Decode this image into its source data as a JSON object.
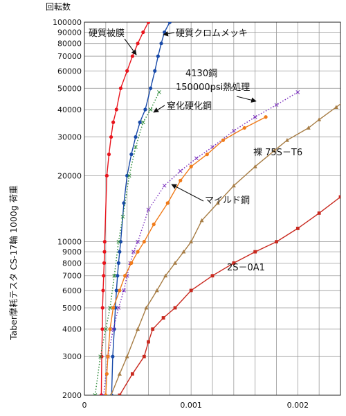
{
  "chart_data": {
    "type": "line",
    "ylabel": "Taber摩耗テスタ CS-17輪 1000g 荷重",
    "y_unit_label": "回転数",
    "y_scale": "log",
    "ylim": [
      2000,
      100000
    ],
    "xlim": [
      0,
      0.0024
    ],
    "y_ticks": [
      2000,
      3000,
      4000,
      5000,
      6000,
      7000,
      8000,
      9000,
      10000,
      20000,
      30000,
      40000,
      50000,
      60000,
      70000,
      80000,
      90000,
      100000
    ],
    "y_tick_labels": [
      "2000",
      "3000",
      "4000",
      "5000",
      "6000",
      "7000",
      "8000",
      "9000",
      "10000",
      "20000",
      "30000",
      "40000",
      "50000",
      "60000",
      "70000",
      "80000",
      "90000",
      "100000"
    ],
    "x_ticks": [
      0,
      0.001,
      0.002
    ],
    "x_tick_labels": [
      "0",
      "0.001",
      "0.002"
    ],
    "grid": true,
    "series": [
      {
        "name": "硬質被膜",
        "color": "#e8141c",
        "marker": "circle",
        "style": "solid",
        "points": [
          [
            0.000158,
            2000
          ],
          [
            0.000162,
            3000
          ],
          [
            0.000168,
            4000
          ],
          [
            0.00017,
            5000
          ],
          [
            0.000175,
            6000
          ],
          [
            0.00018,
            7000
          ],
          [
            0.000185,
            8000
          ],
          [
            0.000188,
            9000
          ],
          [
            0.00019,
            10000
          ],
          [
            0.00021,
            20000
          ],
          [
            0.00023,
            25000
          ],
          [
            0.00025,
            30000
          ],
          [
            0.00027,
            35000
          ],
          [
            0.0003,
            40000
          ],
          [
            0.00034,
            50000
          ],
          [
            0.0004,
            60000
          ],
          [
            0.00045,
            70000
          ],
          [
            0.0005,
            80000
          ],
          [
            0.00055,
            90000
          ],
          [
            0.0006,
            100000
          ]
        ]
      },
      {
        "name": "硬質クロムメッキ",
        "color": "#1749a8",
        "marker": "circle",
        "style": "solid",
        "points": [
          [
            0.000255,
            2000
          ],
          [
            0.000265,
            3000
          ],
          [
            0.00028,
            4000
          ],
          [
            0.00029,
            5000
          ],
          [
            0.0003,
            6000
          ],
          [
            0.00031,
            7000
          ],
          [
            0.00032,
            8000
          ],
          [
            0.00033,
            9000
          ],
          [
            0.00034,
            10000
          ],
          [
            0.00037,
            15000
          ],
          [
            0.0004,
            20000
          ],
          [
            0.00044,
            25000
          ],
          [
            0.00048,
            30000
          ],
          [
            0.00052,
            35000
          ],
          [
            0.00057,
            40000
          ],
          [
            0.00062,
            50000
          ],
          [
            0.00066,
            60000
          ],
          [
            0.00069,
            70000
          ],
          [
            0.00072,
            80000
          ],
          [
            0.00075,
            90000
          ],
          [
            0.0008,
            100000
          ]
        ]
      },
      {
        "name": "窒化硬化鋼",
        "color": "#2e8b3a",
        "marker": "x",
        "style": "dotted",
        "points": [
          [
            0.0001,
            2000
          ],
          [
            0.00015,
            3000
          ],
          [
            0.0002,
            4000
          ],
          [
            0.00024,
            5000
          ],
          [
            0.00028,
            7000
          ],
          [
            0.00032,
            10000
          ],
          [
            0.00036,
            13000
          ],
          [
            0.00042,
            20000
          ],
          [
            0.00048,
            27000
          ],
          [
            0.00055,
            35000
          ],
          [
            0.00062,
            40000
          ],
          [
            0.0007,
            48000
          ]
        ]
      },
      {
        "name": "4130鋼 150000psi熱処理",
        "color": "#7a2fbe",
        "marker": "x",
        "style": "dotted",
        "points": [
          [
            0.00018,
            2000
          ],
          [
            0.00022,
            3000
          ],
          [
            0.00027,
            4000
          ],
          [
            0.00032,
            5000
          ],
          [
            0.00037,
            6000
          ],
          [
            0.0004,
            7000
          ],
          [
            0.00043,
            8000
          ],
          [
            0.00046,
            9000
          ],
          [
            0.0005,
            10000
          ],
          [
            0.0006,
            14000
          ],
          [
            0.00075,
            18000
          ],
          [
            0.0009,
            21000
          ],
          [
            0.00105,
            24000
          ],
          [
            0.0012,
            27000
          ],
          [
            0.0014,
            32000
          ],
          [
            0.0016,
            37000
          ],
          [
            0.0018,
            42000
          ],
          [
            0.002,
            48000
          ]
        ]
      },
      {
        "name": "マイルド鋼",
        "color": "#f07b1a",
        "marker": "circle",
        "style": "solid",
        "points": [
          [
            0.0002,
            2000
          ],
          [
            0.00021,
            2500
          ],
          [
            0.00022,
            3000
          ],
          [
            0.00024,
            4000
          ],
          [
            0.00027,
            5000
          ],
          [
            0.00033,
            6000
          ],
          [
            0.00038,
            7000
          ],
          [
            0.00044,
            8000
          ],
          [
            0.0005,
            9000
          ],
          [
            0.00056,
            10000
          ],
          [
            0.00065,
            12000
          ],
          [
            0.00078,
            15000
          ],
          [
            0.0009,
            19000
          ],
          [
            0.001,
            22000
          ],
          [
            0.00115,
            25000
          ],
          [
            0.0013,
            29000
          ],
          [
            0.0015,
            33000
          ],
          [
            0.0017,
            37000
          ]
        ]
      },
      {
        "name": "裸 75S－T6",
        "color": "#a77d45",
        "marker": "triangle",
        "style": "solid",
        "points": [
          [
            0.00025,
            2000
          ],
          [
            0.00033,
            2500
          ],
          [
            0.0004,
            3000
          ],
          [
            0.0005,
            4000
          ],
          [
            0.00058,
            5000
          ],
          [
            0.00068,
            6000
          ],
          [
            0.00076,
            7000
          ],
          [
            0.00085,
            8000
          ],
          [
            0.00093,
            9000
          ],
          [
            0.001,
            10000
          ],
          [
            0.0011,
            12500
          ],
          [
            0.00125,
            15000
          ],
          [
            0.0014,
            18000
          ],
          [
            0.0016,
            22000
          ],
          [
            0.00178,
            26000
          ],
          [
            0.0019,
            29000
          ],
          [
            0.0021,
            33000
          ],
          [
            0.0022,
            36000
          ],
          [
            0.00236,
            41000
          ],
          [
            0.0025,
            46000
          ]
        ]
      },
      {
        "name": "2S－0A1",
        "color": "#c8281e",
        "marker": "square",
        "style": "solid",
        "points": [
          [
            0.00033,
            2000
          ],
          [
            0.00045,
            2500
          ],
          [
            0.00056,
            3000
          ],
          [
            0.0006,
            3500
          ],
          [
            0.00064,
            4000
          ],
          [
            0.00074,
            4500
          ],
          [
            0.00085,
            5000
          ],
          [
            0.001,
            6000
          ],
          [
            0.0012,
            7000
          ],
          [
            0.0014,
            8000
          ],
          [
            0.0016,
            9000
          ],
          [
            0.0018,
            10000
          ],
          [
            0.002,
            11500
          ],
          [
            0.0022,
            13500
          ],
          [
            0.0024,
            16000
          ]
        ]
      }
    ],
    "annotations": [
      {
        "text": "硬質被膜"
      },
      {
        "text": "硬質クロムメッキ"
      },
      {
        "text": "4130鋼"
      },
      {
        "text": "150000psi熱処理"
      },
      {
        "text": "窒化硬化鋼"
      },
      {
        "text": "裸 75S－T6"
      },
      {
        "text": "マイルド鋼"
      },
      {
        "text": "2S－0A1"
      }
    ]
  }
}
